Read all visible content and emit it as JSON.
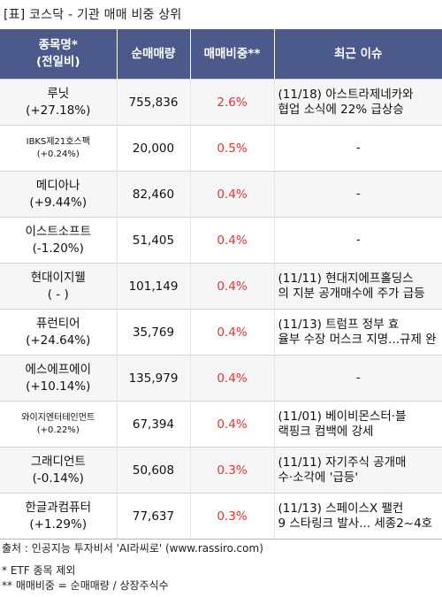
{
  "title": "[표] 코스닥 - 기관 매매 비중 상위",
  "headers": {
    "name_line1": "종목명*",
    "name_line2": "(전일비)",
    "volume": "순매매량",
    "ratio": "매매비중**",
    "issue": "최근 이슈"
  },
  "rows": [
    {
      "name": "루닛",
      "change": "(+27.18%)",
      "volume": "755,836",
      "ratio": "2.6%",
      "issue": [
        "(11/18) 아스트라제네카와",
        "협업 소식에 22% 급상승"
      ]
    },
    {
      "name": "IBKS제21호스팩",
      "change": "(+0.24%)",
      "volume": "20,000",
      "ratio": "0.5%",
      "issue": [
        "-"
      ]
    },
    {
      "name": "메디아나",
      "change": "(+9.44%)",
      "volume": "82,460",
      "ratio": "0.4%",
      "issue": [
        "-"
      ]
    },
    {
      "name": "이스트소프트",
      "change": "(-1.20%)",
      "volume": "51,405",
      "ratio": "0.4%",
      "issue": [
        "-"
      ]
    },
    {
      "name": "현대이지웰",
      "change": "( - )",
      "volume": "101,149",
      "ratio": "0.4%",
      "issue": [
        "(11/11) 현대지에프홀딩스",
        "의 지분 공개매수에 주가 급등"
      ]
    },
    {
      "name": "퓨런티어",
      "change": "(+24.64%)",
      "volume": "35,769",
      "ratio": "0.4%",
      "issue": [
        "(11/13) 트럼프 정부 효",
        "율부 수장 머스크 지명...규제 완"
      ]
    },
    {
      "name": "에스에프에이",
      "change": "(+10.14%)",
      "volume": "135,979",
      "ratio": "0.4%",
      "issue": [
        "-"
      ]
    },
    {
      "name": "와이지엔터테인먼트",
      "change": "(+0.22%)",
      "volume": "67,394",
      "ratio": "0.4%",
      "issue": [
        "(11/01) 베이비몬스터·블",
        "랙핑크 컴백에 강세"
      ]
    },
    {
      "name": "그래디언트",
      "change": "(-0.14%)",
      "volume": "50,608",
      "ratio": "0.3%",
      "issue": [
        "(11/11) 자기주식 공개매",
        "수·소각에 '급등'"
      ]
    },
    {
      "name": "한글과컴퓨터",
      "change": "(+1.29%)",
      "volume": "77,637",
      "ratio": "0.3%",
      "issue": [
        "(11/13) 스페이스X 팰컨",
        "9 스타링크 발사... 세종2~4호"
      ]
    }
  ],
  "footer": {
    "source": "출처 : 인공지능 투자비서 'AI라씨로' (www.rassiro.com)",
    "note1": "* ETF 종목 제외",
    "note2": "** 매매비중 = 순매매량 / 상장주식수"
  },
  "colors": {
    "header_bg": "#4b5a8a",
    "ratio_red": "#e8352f"
  }
}
